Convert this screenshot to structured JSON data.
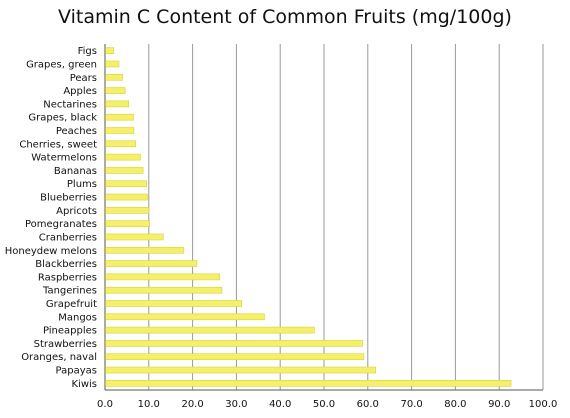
{
  "chart_data": {
    "type": "bar",
    "orientation": "horizontal",
    "title": "Vitamin C Content of Common Fruits (mg/100g)",
    "xlabel": "",
    "ylabel": "",
    "xlim": [
      0,
      100
    ],
    "xticks": [
      "0.0",
      "10.0",
      "20.0",
      "30.0",
      "40.0",
      "50.0",
      "60.0",
      "70.0",
      "80.0",
      "90.0",
      "100.0"
    ],
    "grid": "vertical",
    "legend": "none",
    "bar_color": "#f5f06a",
    "bar_edge_color": "#d8d23a",
    "categories": [
      "Figs",
      "Grapes, green",
      "Pears",
      "Apples",
      "Nectarines",
      "Grapes, black",
      "Peaches",
      "Cherries, sweet",
      "Watermelons",
      "Bananas",
      "Plums",
      "Blueberries",
      "Apricots",
      "Pomegranates",
      "Cranberries",
      "Honeydew melons",
      "Blackberries",
      "Raspberries",
      "Tangerines",
      "Grapefruit",
      "Mangos",
      "Pineapples",
      "Strawberries",
      "Oranges, naval",
      "Papayas",
      "Kiwis"
    ],
    "values": [
      2.0,
      3.2,
      4.0,
      4.6,
      5.4,
      6.5,
      6.6,
      7.0,
      8.1,
      8.7,
      9.5,
      9.7,
      10.0,
      10.2,
      13.3,
      18.0,
      21.0,
      26.2,
      26.7,
      31.2,
      36.4,
      47.8,
      58.8,
      59.1,
      61.8,
      92.7
    ]
  }
}
